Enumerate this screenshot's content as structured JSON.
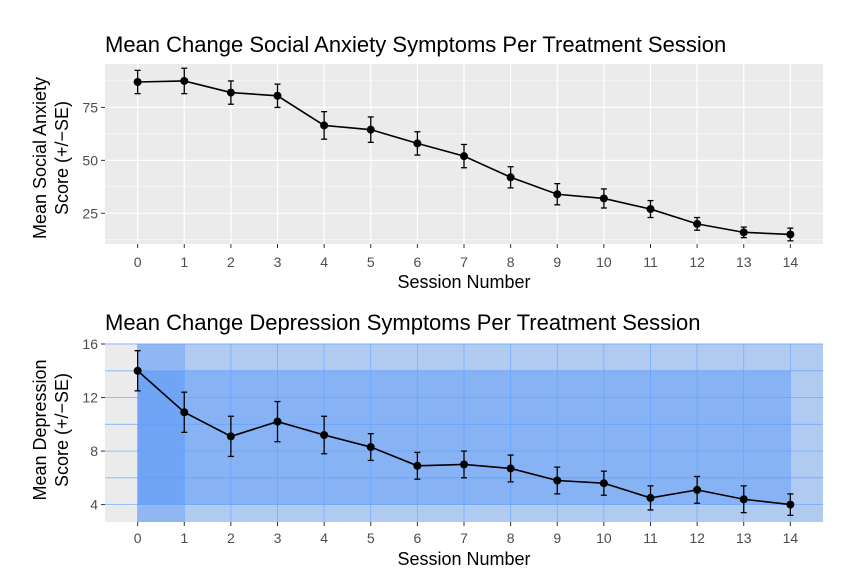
{
  "chart_data": [
    {
      "type": "line",
      "title": "Mean Change Social Anxiety Symptoms Per Treatment Session",
      "xlabel": "Session Number",
      "ylabel": [
        "Mean Social Anxiety",
        "Score (+/−SE)"
      ],
      "x": [
        0,
        1,
        2,
        3,
        4,
        5,
        6,
        7,
        8,
        9,
        10,
        11,
        12,
        13,
        14
      ],
      "y": [
        87,
        87.5,
        82,
        80.5,
        66.5,
        64.5,
        58,
        52,
        42,
        34,
        32,
        27,
        20,
        16,
        15
      ],
      "se": [
        5.5,
        6,
        5.5,
        5.5,
        6.5,
        6,
        5.5,
        5.5,
        5,
        5,
        4.5,
        4,
        3,
        2.5,
        3
      ],
      "xticks": [
        0,
        1,
        2,
        3,
        4,
        5,
        6,
        7,
        8,
        9,
        10,
        11,
        12,
        13,
        14
      ],
      "yticks": [
        25,
        50,
        75
      ],
      "xlim": [
        -0.7,
        14.7
      ],
      "ylim": [
        10.5,
        95.5
      ],
      "grid": true
    },
    {
      "type": "line",
      "title": "Mean Change Depression Symptoms Per Treatment Session",
      "xlabel": "Session Number",
      "ylabel": [
        "Mean Depression",
        "Score (+/−SE)"
      ],
      "x": [
        0,
        1,
        2,
        3,
        4,
        5,
        6,
        7,
        8,
        9,
        10,
        11,
        12,
        13,
        14
      ],
      "y": [
        14,
        10.9,
        9.1,
        10.2,
        9.2,
        8.3,
        6.9,
        7.0,
        6.7,
        5.8,
        5.6,
        4.5,
        5.1,
        4.4,
        4.0
      ],
      "se": [
        1.5,
        1.5,
        1.5,
        1.5,
        1.4,
        1.0,
        1.0,
        1.0,
        1.0,
        1.0,
        0.9,
        0.9,
        1.0,
        1.0,
        0.8
      ],
      "xticks": [
        0,
        1,
        2,
        3,
        4,
        5,
        6,
        7,
        8,
        9,
        10,
        11,
        12,
        13,
        14
      ],
      "yticks": [
        4,
        8,
        12,
        16
      ],
      "xlim": [
        -0.7,
        14.7
      ],
      "ylim": [
        2.7,
        16
      ],
      "grid": true,
      "selection_overlay": {
        "color": "#1e78ff",
        "outer_x": [
          0,
          14.7
        ],
        "outer_y": [
          2.7,
          16
        ],
        "inner_x": [
          0,
          14
        ],
        "inner_y": [
          4,
          14
        ],
        "highlight_column_x": [
          0,
          1
        ]
      }
    }
  ]
}
